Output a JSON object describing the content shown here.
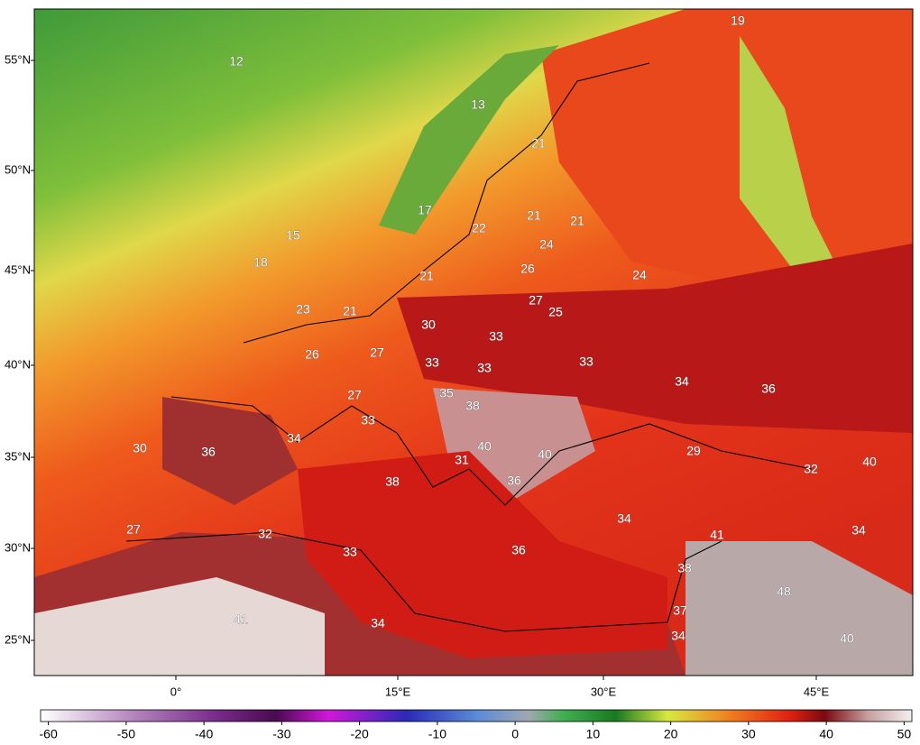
{
  "map": {
    "lat_labels": [
      "55°N",
      "50°N",
      "45°N",
      "40°N",
      "35°N",
      "30°N",
      "25°N"
    ],
    "lon_labels": [
      "0°",
      "15°E",
      "30°E",
      "45°E"
    ],
    "points": [
      12,
      19,
      13,
      21,
      17,
      22,
      21,
      21,
      24,
      15,
      18,
      26,
      21,
      24,
      27,
      25,
      23,
      21,
      30,
      33,
      26,
      27,
      33,
      33,
      33,
      34,
      36,
      27,
      35,
      38,
      33,
      34,
      30,
      36,
      40,
      40,
      31,
      29,
      32,
      40,
      38,
      36,
      34,
      27,
      32,
      41,
      34,
      33,
      36,
      38,
      48,
      41,
      34,
      37,
      34,
      40
    ]
  },
  "colorbar": {
    "lim": [
      -61,
      51
    ],
    "ticks": [
      -60,
      -50,
      -40,
      -30,
      -20,
      -10,
      0,
      10,
      20,
      30,
      40,
      50
    ]
  }
}
